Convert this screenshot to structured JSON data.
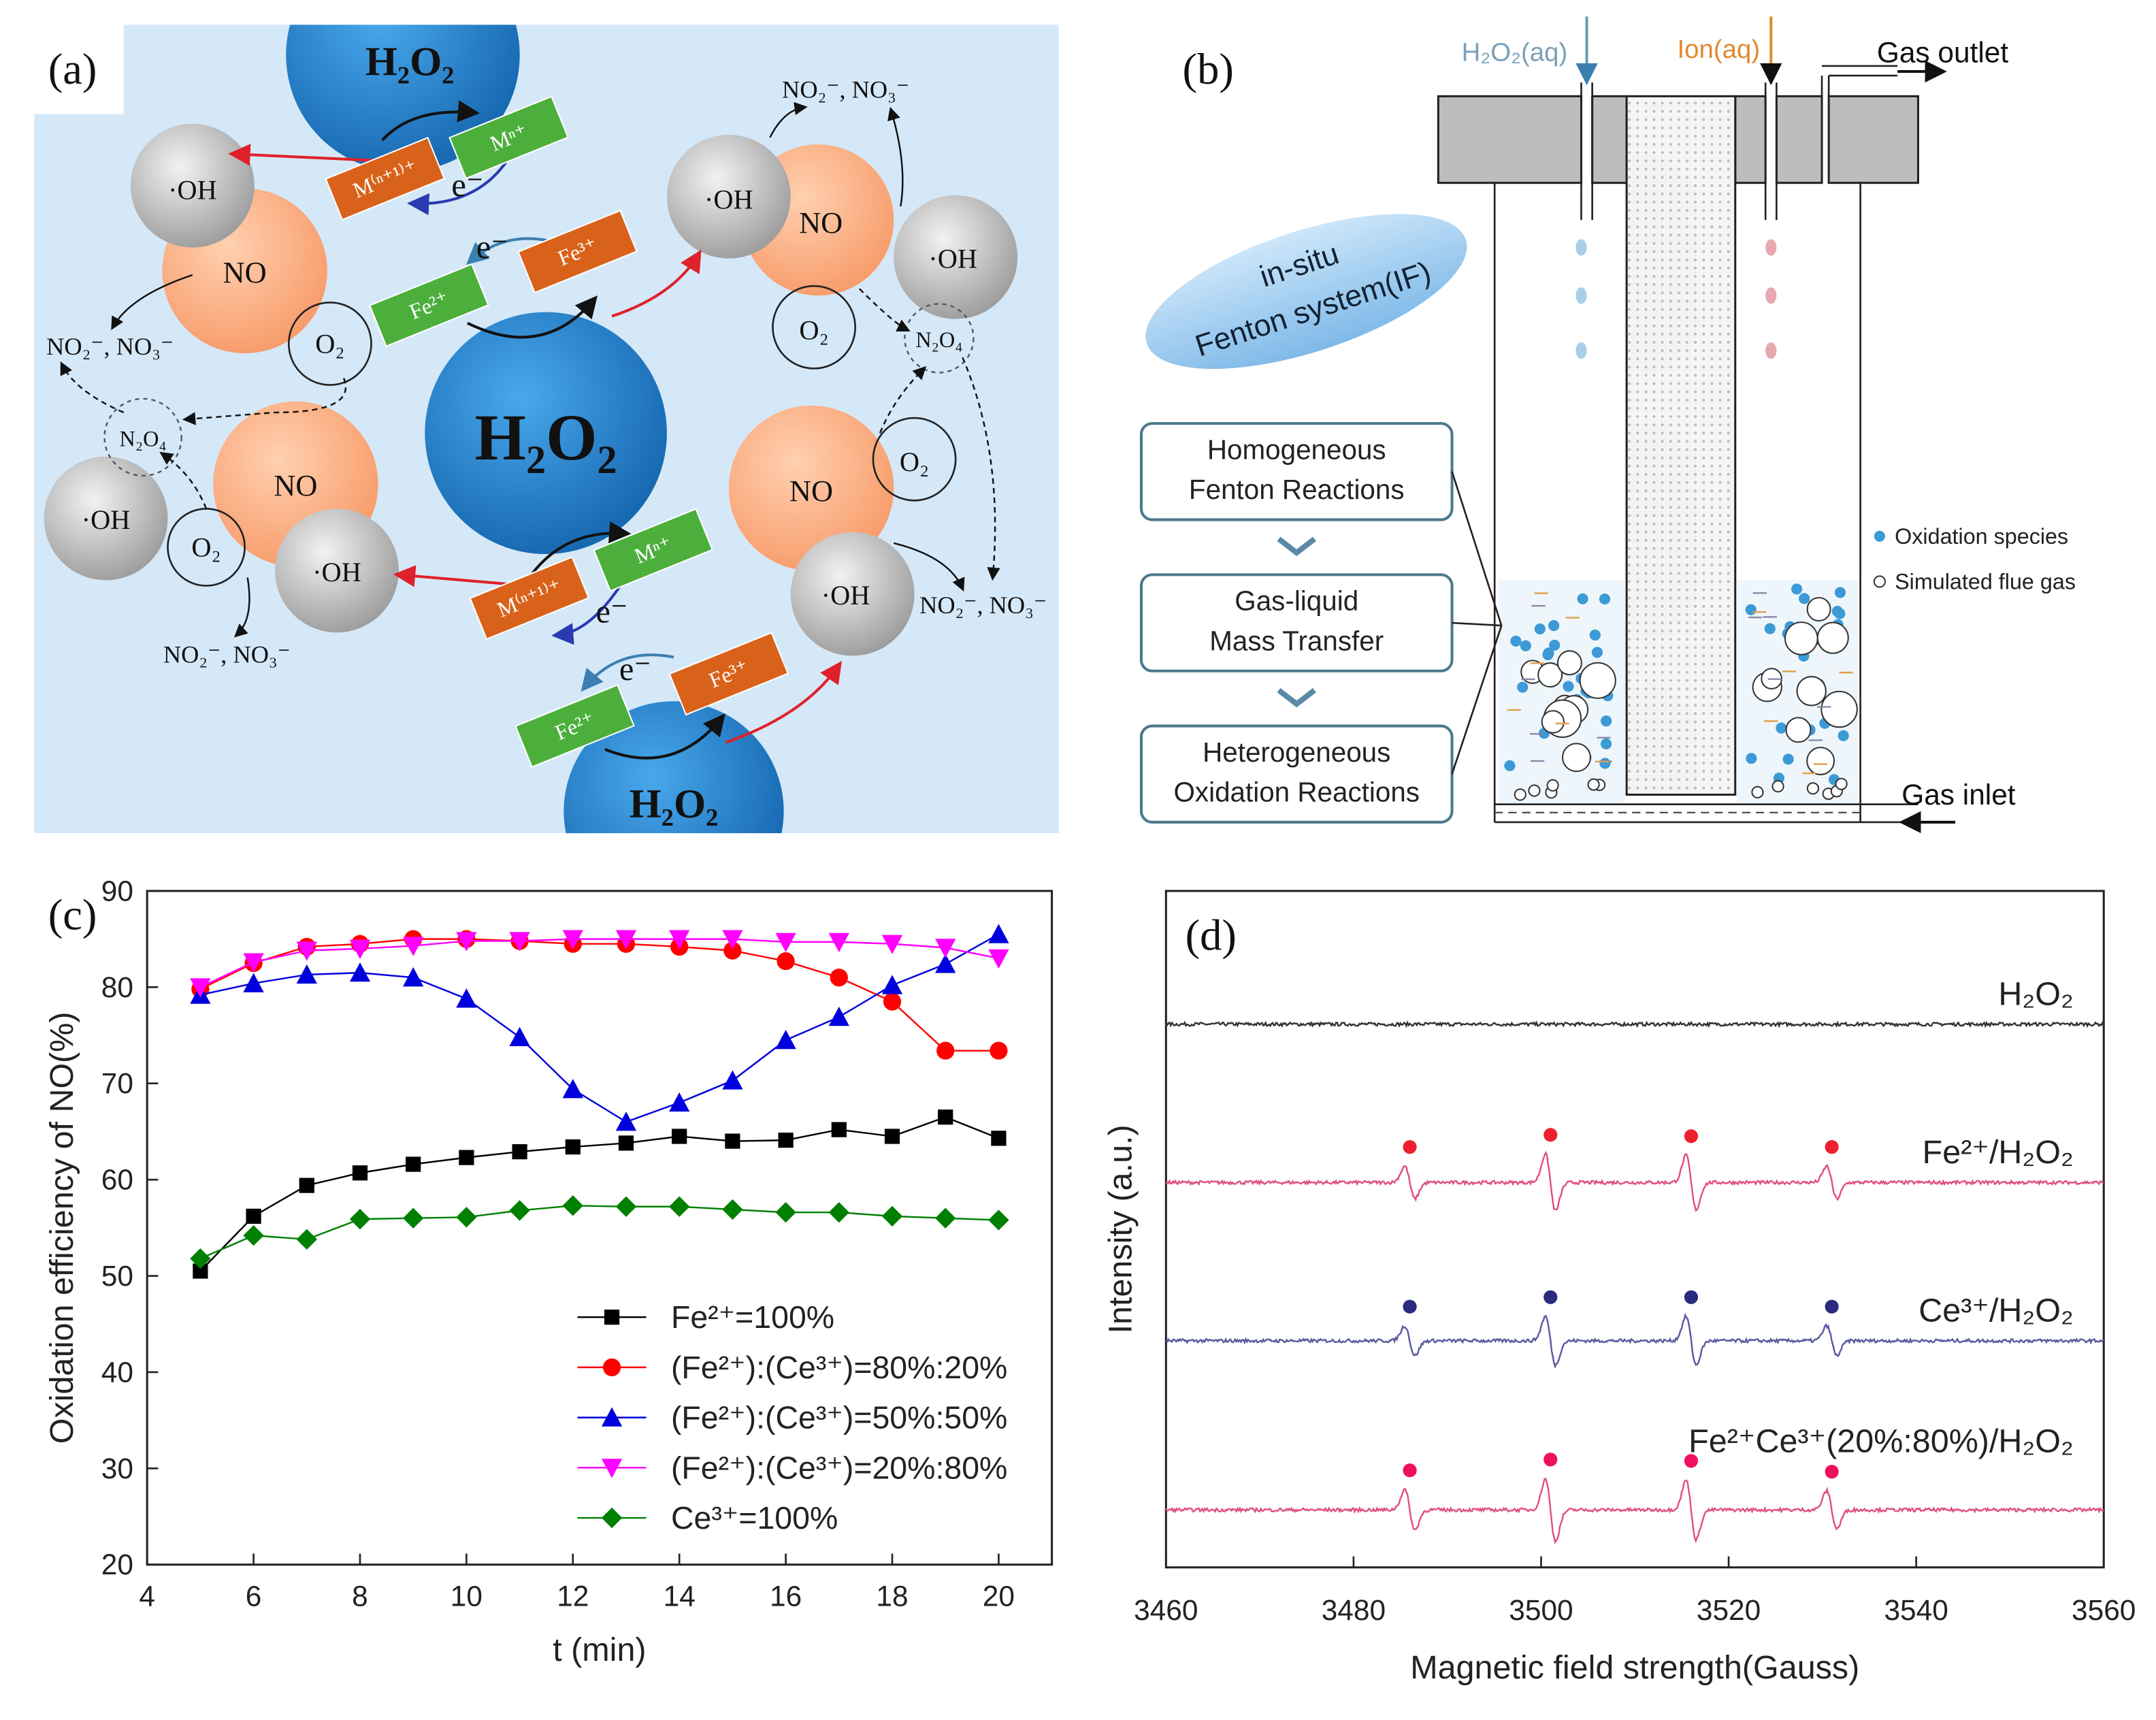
{
  "panel_labels": [
    "(a)",
    "(b)",
    "(c)",
    "(d)"
  ],
  "diagram_a": {
    "labels": [
      "H₂O₂",
      "H₂O₂",
      "H₂O₂",
      "·OH",
      "·OH",
      "·OH",
      "·OH",
      "·OH",
      "·OH",
      "NO",
      "NO",
      "NO",
      "NO",
      "O₂",
      "O₂",
      "O₂",
      "O₂",
      "N₂O₄",
      "N₂O₄",
      "NO₂⁻, NO₃⁻",
      "NO₂⁻, NO₃⁻",
      "NO₂⁻, NO₃⁻",
      "NO₂⁻, NO₃⁻",
      "M⁽ⁿ⁺¹⁾⁺",
      "Mⁿ⁺",
      "e⁻",
      "Fe²⁺",
      "Fe³⁺",
      "e⁻",
      "M⁽ⁿ⁺¹⁾⁺",
      "Mⁿ⁺",
      "e⁻",
      "Fe²⁺",
      "Fe³⁺",
      "e⁻"
    ]
  },
  "diagram_b": {
    "inputs": [
      "H₂O₂(aq)",
      "Ion(aq)"
    ],
    "gas_outlet": "Gas outlet",
    "gas_inlet": "Gas inlet",
    "system": [
      "in-situ",
      "Fenton system(IF)"
    ],
    "steps": [
      [
        "Homogeneous",
        "Fenton Reactions"
      ],
      [
        "Gas-liquid",
        "Mass Transfer"
      ],
      [
        "Heterogeneous",
        "Oxidation Reactions"
      ]
    ],
    "legend": [
      "Oxidation species",
      "Simulated flue gas"
    ]
  },
  "chart_data": [
    {
      "type": "line",
      "xlabel": "t (min)",
      "ylabel": "Oxidation efficiency of NO(%)",
      "x": [
        5,
        6,
        7,
        8,
        9,
        10,
        11,
        12,
        13,
        14,
        15,
        16,
        17,
        18,
        19,
        20
      ],
      "xlim": [
        4,
        21
      ],
      "xticks": [
        4,
        6,
        8,
        10,
        12,
        14,
        16,
        18,
        20
      ],
      "ylim": [
        20,
        90
      ],
      "yticks": [
        20,
        30,
        40,
        50,
        60,
        70,
        80,
        90
      ],
      "legend": "lower right",
      "series": [
        {
          "name": "Fe²⁺=100%",
          "color": "#000000",
          "marker": "square",
          "values": [
            50.5,
            56.2,
            59.4,
            60.7,
            61.6,
            62.3,
            62.9,
            63.4,
            63.8,
            64.5,
            64.0,
            64.1,
            65.2,
            64.5,
            66.5,
            64.3
          ]
        },
        {
          "name": "(Fe²⁺):(Ce³⁺)=80%:20%",
          "color": "#ff0000",
          "marker": "circle",
          "values": [
            79.8,
            82.5,
            84.2,
            84.5,
            85.0,
            85.0,
            84.8,
            84.5,
            84.5,
            84.2,
            83.8,
            82.7,
            81.0,
            78.5,
            73.4,
            73.4
          ]
        },
        {
          "name": "(Fe²⁺):(Ce³⁺)=50%:50%",
          "color": "#0000dd",
          "marker": "triangle-up",
          "values": [
            79.2,
            80.4,
            81.3,
            81.5,
            81.0,
            78.8,
            74.8,
            69.4,
            66.0,
            68.0,
            70.3,
            74.5,
            76.9,
            80.2,
            82.4,
            85.5
          ]
        },
        {
          "name": "(Fe²⁺):(Ce³⁺)=20%:80%",
          "color": "#ff00ff",
          "marker": "triangle-down",
          "values": [
            80.0,
            82.6,
            83.8,
            84.0,
            84.3,
            84.8,
            84.8,
            85.0,
            85.0,
            85.0,
            85.0,
            84.7,
            84.7,
            84.5,
            84.1,
            83.0
          ]
        },
        {
          "name": "Ce³⁺=100%",
          "color": "#008000",
          "marker": "diamond",
          "values": [
            51.8,
            54.2,
            53.8,
            55.9,
            56.0,
            56.1,
            56.8,
            57.3,
            57.2,
            57.2,
            56.9,
            56.6,
            56.6,
            56.2,
            56.0,
            55.8
          ]
        }
      ]
    },
    {
      "type": "spectrum",
      "xlabel": "Magnetic field strength(Gauss)",
      "ylabel": "Intensity (a.u.)",
      "xlim": [
        3460,
        3560
      ],
      "xticks": [
        3460,
        3480,
        3500,
        3520,
        3540,
        3560
      ],
      "ylim": [
        0,
        100
      ],
      "series": [
        {
          "name": "H₂O₂",
          "color": "#333333",
          "marker_color": "#333333",
          "baseline": 80.3,
          "peaks": [],
          "peak_heights": []
        },
        {
          "name": "Fe²⁺/H₂O₂",
          "color": "#e0507a",
          "marker_color": "#ee2030",
          "baseline": 56.9,
          "peaks": [
            3486,
            3501,
            3516,
            3531
          ],
          "peak_heights": [
            2.4,
            4.2,
            4.0,
            2.4
          ]
        },
        {
          "name": "Ce³⁺/H₂O₂",
          "color": "#5a5aa0",
          "marker_color": "#2a2a80",
          "baseline": 33.5,
          "peaks": [
            3486,
            3501,
            3516,
            3531
          ],
          "peak_heights": [
            2.2,
            3.6,
            3.6,
            2.2
          ]
        },
        {
          "name": "Fe²⁺Ce³⁺(20%:80%)/H₂O₂",
          "color": "#e0507a",
          "marker_color": "#f01060",
          "baseline": 8.5,
          "peaks": [
            3486,
            3501,
            3516,
            3531
          ],
          "peak_heights": [
            3.0,
            4.6,
            4.4,
            2.8
          ]
        }
      ]
    }
  ]
}
